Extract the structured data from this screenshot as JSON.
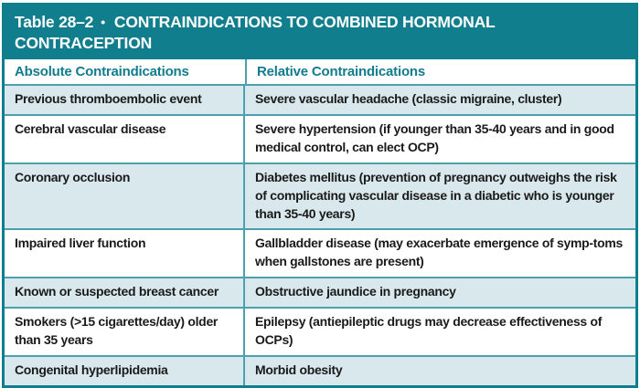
{
  "colors": {
    "teal_band": "#117e8e",
    "rule_line": "#4aa0ad",
    "row_alt_background": "#d9e8ec",
    "column_header_text": "#117c8d",
    "body_text": "#1a1a1a"
  },
  "title_bar": {
    "label": "Table 28–2",
    "bullet": "•",
    "title_line1": "CONTRAINDICATIONS TO COMBINED HORMONAL",
    "title_line2": "CONTRACEPTION"
  },
  "columns": {
    "absolute": "Absolute Contraindications",
    "relative": "Relative Contraindications"
  },
  "rows": [
    {
      "absolute": "Previous thromboembolic event",
      "relative": "Severe vascular headache (classic migraine, cluster)"
    },
    {
      "absolute": "Cerebral vascular disease",
      "relative": "Severe hypertension (if younger than 35-40 years and in good medical control, can elect OCP)"
    },
    {
      "absolute": "Coronary occlusion",
      "relative": "Diabetes mellitus (prevention of pregnancy outweighs the risk of complicating vascular disease in a diabetic who is younger than 35-40 years)"
    },
    {
      "absolute": "Impaired liver function",
      "relative": "Gallbladder disease (may exacerbate emergence of symp-toms when gallstones are present)"
    },
    {
      "absolute": "Known or suspected breast cancer",
      "relative": "Obstructive jaundice in pregnancy"
    },
    {
      "absolute": "Smokers (>15 cigarettes/day) older than 35 years",
      "relative": "Epilepsy (antiepileptic drugs may decrease effectiveness of OCPs)"
    },
    {
      "absolute": "Congenital hyperlipidemia",
      "relative": "Morbid obesity"
    }
  ]
}
